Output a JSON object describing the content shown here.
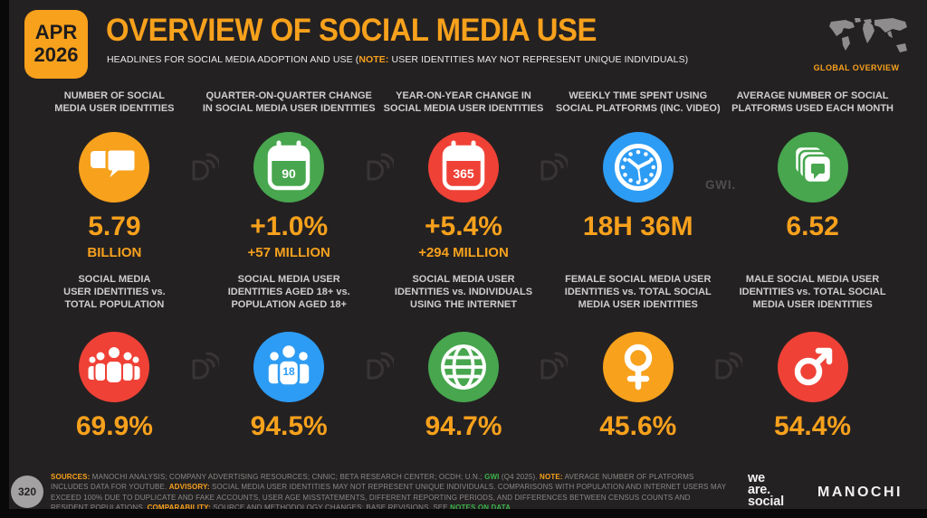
{
  "slide": {
    "date_month": "APR",
    "date_year": "2026",
    "title": "OVERVIEW OF SOCIAL MEDIA USE",
    "subtitle_prefix": "HEADLINES FOR SOCIAL MEDIA ADOPTION AND USE (",
    "subtitle_note_label": "NOTE:",
    "subtitle_suffix": " USER IDENTITIES MAY NOT REPRESENT UNIQUE INDIVIDUALS)",
    "region_label": "GLOBAL OVERVIEW"
  },
  "colors": {
    "accent_orange": "#F7A11C",
    "green": "#47A64E",
    "red": "#EF4136",
    "blue": "#2D9CF4",
    "background": "#242122",
    "label_gray": "#CFCDCD",
    "footer_gray": "#8B8887",
    "footer_green": "#3DB24B",
    "watermark_gray": "#3C3839"
  },
  "row1": [
    {
      "label": "NUMBER OF SOCIAL\nMEDIA USER IDENTITIES",
      "icon": "chat-bubbles-icon",
      "color": "#F7A11C",
      "value": "5.79",
      "subvalue": "BILLION"
    },
    {
      "label": "QUARTER-ON-QUARTER CHANGE\nIN SOCIAL MEDIA USER IDENTITIES",
      "icon": "calendar-quarter-icon",
      "badge": "90",
      "color": "#47A64E",
      "value": "+1.0%",
      "subvalue": "+57 MILLION"
    },
    {
      "label": "YEAR-ON-YEAR CHANGE IN\nSOCIAL MEDIA USER IDENTITIES",
      "icon": "calendar-year-icon",
      "badge": "365",
      "color": "#EF4136",
      "value": "+5.4%",
      "subvalue": "+294 MILLION"
    },
    {
      "label": "WEEKLY TIME SPENT USING\nSOCIAL PLATFORMS (INC. VIDEO)",
      "icon": "clock-icon",
      "color": "#2D9CF4",
      "value": "18H 36M",
      "subvalue": "",
      "source_label": "GWI."
    },
    {
      "label": "AVERAGE NUMBER OF SOCIAL\nPLATFORMS USED EACH MONTH",
      "icon": "stacked-platforms-icon",
      "color": "#47A64E",
      "value": "6.52",
      "subvalue": ""
    }
  ],
  "row2": [
    {
      "label": "SOCIAL MEDIA\nUSER IDENTITIES vs.\nTOTAL POPULATION",
      "icon": "people-group-icon",
      "color": "#EF4136",
      "value": "69.9%"
    },
    {
      "label": "SOCIAL MEDIA USER\nIDENTITIES AGED 18+ vs.\nPOPULATION AGED 18+",
      "icon": "people-aged-18-icon",
      "badge": "18",
      "color": "#2D9CF4",
      "value": "94.5%"
    },
    {
      "label": "SOCIAL MEDIA USER\nIDENTITIES vs. INDIVIDUALS\nUSING THE INTERNET",
      "icon": "globe-icon",
      "color": "#47A64E",
      "value": "94.7%"
    },
    {
      "label": "FEMALE SOCIAL MEDIA USER\nIDENTITIES vs. TOTAL SOCIAL\nMEDIA USER IDENTITIES",
      "icon": "female-symbol-icon",
      "color": "#F7A11C",
      "value": "45.6%"
    },
    {
      "label": "MALE SOCIAL MEDIA USER\nIDENTITIES vs. TOTAL SOCIAL\nMEDIA USER IDENTITIES",
      "icon": "male-symbol-icon",
      "color": "#EF4136",
      "value": "54.4%"
    }
  ],
  "chart_data": {
    "type": "table",
    "title": "OVERVIEW OF SOCIAL MEDIA USE",
    "metrics": [
      {
        "label": "NUMBER OF SOCIAL MEDIA USER IDENTITIES",
        "value": "5.79 BILLION"
      },
      {
        "label": "QUARTER-ON-QUARTER CHANGE IN SOCIAL MEDIA USER IDENTITIES",
        "value": "+1.0% (+57 MILLION)"
      },
      {
        "label": "YEAR-ON-YEAR CHANGE IN SOCIAL MEDIA USER IDENTITIES",
        "value": "+5.4% (+294 MILLION)"
      },
      {
        "label": "WEEKLY TIME SPENT USING SOCIAL PLATFORMS (INC. VIDEO)",
        "value": "18H 36M"
      },
      {
        "label": "AVERAGE NUMBER OF SOCIAL PLATFORMS USED EACH MONTH",
        "value": "6.52"
      },
      {
        "label": "SOCIAL MEDIA USER IDENTITIES vs. TOTAL POPULATION",
        "value": "69.9%"
      },
      {
        "label": "SOCIAL MEDIA USER IDENTITIES AGED 18+ vs. POPULATION AGED 18+",
        "value": "94.5%"
      },
      {
        "label": "SOCIAL MEDIA USER IDENTITIES vs. INDIVIDUALS USING THE INTERNET",
        "value": "94.7%"
      },
      {
        "label": "FEMALE SOCIAL MEDIA USER IDENTITIES vs. TOTAL SOCIAL MEDIA USER IDENTITIES",
        "value": "45.6%"
      },
      {
        "label": "MALE SOCIAL MEDIA USER IDENTITIES vs. TOTAL SOCIAL MEDIA USER IDENTITIES",
        "value": "54.4%"
      }
    ]
  },
  "footer": {
    "page_number": "320",
    "segments": [
      {
        "text": "SOURCES:",
        "style": "orange"
      },
      {
        "text": " MANOCHI ANALYSIS; COMPANY ADVERTISING RESOURCES; CNNIC; BETA RESEARCH CENTER; OCDH; U.N.; ",
        "style": "plain"
      },
      {
        "text": "GWI",
        "style": "green"
      },
      {
        "text": " (Q4 2025). ",
        "style": "plain"
      },
      {
        "text": "NOTE:",
        "style": "orange"
      },
      {
        "text": " AVERAGE NUMBER OF PLATFORMS INCLUDES DATA FOR YOUTUBE. ",
        "style": "plain"
      },
      {
        "text": "ADVISORY:",
        "style": "orange"
      },
      {
        "text": " SOCIAL MEDIA USER IDENTITIES MAY NOT REPRESENT UNIQUE INDIVIDUALS. COMPARISONS WITH POPULATION AND INTERNET USERS MAY EXCEED 100% DUE TO DUPLICATE AND FAKE ACCOUNTS, USER AGE MISSTATEMENTS, DIFFERENT REPORTING PERIODS, AND DIFFERENCES BETWEEN CENSUS COUNTS AND RESIDENT POPULATIONS. ",
        "style": "plain"
      },
      {
        "text": "COMPARABILITY:",
        "style": "orange"
      },
      {
        "text": " SOURCE AND METHODOLOGY CHANGES; BASE REVISIONS. SEE ",
        "style": "plain"
      },
      {
        "text": "NOTES ON DATA",
        "style": "green-link"
      },
      {
        "text": ".",
        "style": "plain"
      }
    ],
    "brand_we_are_social": {
      "line1": "we",
      "line2": "are.",
      "line3": "social"
    },
    "brand_manochi": "MANOCHI"
  }
}
